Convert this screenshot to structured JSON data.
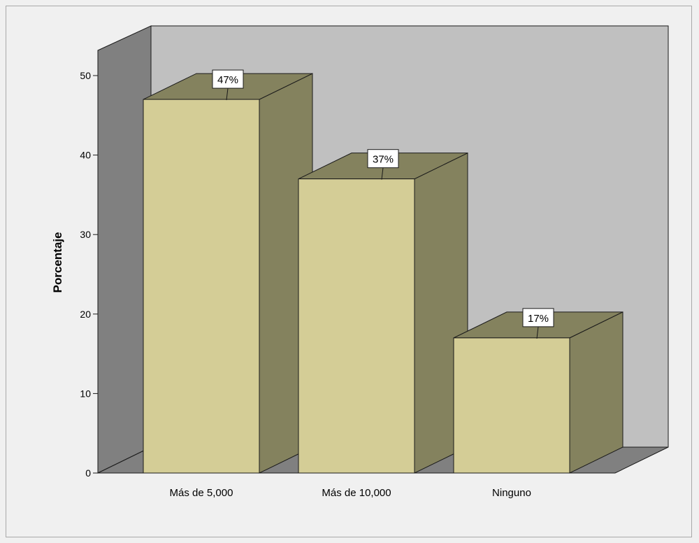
{
  "chart_data": {
    "type": "bar",
    "style": "3d",
    "categories": [
      "Más de 5,000",
      "Más de 10,000",
      "Ninguno"
    ],
    "values": [
      47,
      37,
      17
    ],
    "data_labels": [
      "47%",
      "37%",
      "17%"
    ],
    "ylabel": "Porcentaje",
    "xlabel": "",
    "ylim": [
      0,
      50
    ],
    "yticks": [
      0,
      10,
      20,
      30,
      40,
      50
    ],
    "colors": {
      "bar_front": "#d4cd96",
      "bar_side": "#84825e",
      "bar_top": "#84825e",
      "back_wall": "#c0c0c0",
      "side_wall": "#808080",
      "floor": "#808080",
      "background": "#f0f0f0"
    }
  }
}
